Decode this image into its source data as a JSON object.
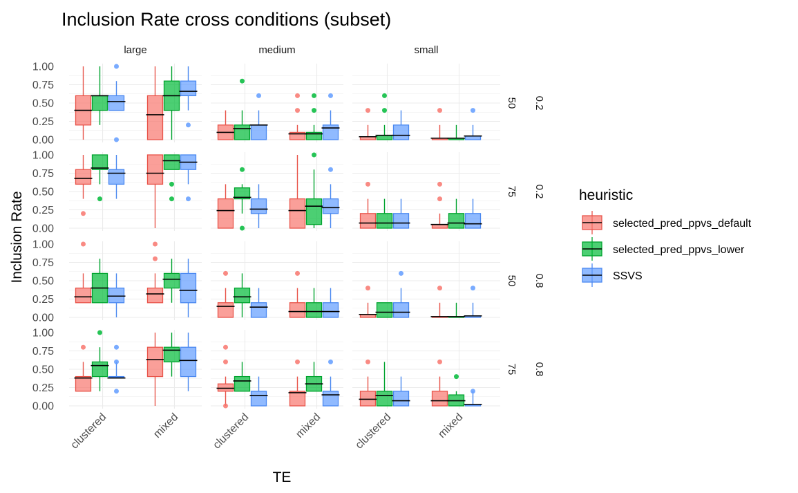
{
  "chart_data": {
    "type": "boxplot",
    "title": "Inclusion Rate cross conditions (subset)",
    "xlabel": "TE",
    "ylabel": "Inclusion Rate",
    "ylim": [
      0,
      1
    ],
    "y_ticks": [
      "0.00",
      "0.25",
      "0.50",
      "0.75",
      "1.00"
    ],
    "x_categories": [
      "clustered",
      "mixed"
    ],
    "columns": [
      "large",
      "medium",
      "small"
    ],
    "rows": [
      {
        "a": "50",
        "b": "0.2"
      },
      {
        "a": "75",
        "b": "0.2"
      },
      {
        "a": "50",
        "b": "0.8"
      },
      {
        "a": "75",
        "b": "0.8"
      }
    ],
    "legend": {
      "title": "heuristic",
      "position": "right",
      "items": [
        {
          "label": "selected_pred_ppvs_default",
          "fill": "#F8766D",
          "stroke": "#E8544A"
        },
        {
          "label": "selected_pred_ppvs_lower",
          "fill": "#00BA38",
          "stroke": "#00A32E"
        },
        {
          "label": "SSVS",
          "fill": "#619CFF",
          "stroke": "#4A88F0"
        }
      ]
    },
    "grid": true,
    "box_stats_order": [
      "min",
      "q1",
      "median",
      "q3",
      "max",
      "outliers"
    ],
    "panels": [
      [
        [
          [
            [
              0,
              0.2,
              0.4,
              0.6,
              1,
              []
            ],
            [
              0.2,
              0.4,
              0.6,
              0.6,
              1,
              []
            ],
            [
              0.4,
              0.4,
              0.52,
              0.6,
              0.8,
              [
                0,
                1
              ]
            ]
          ],
          [
            [
              0,
              0,
              0.34,
              0.6,
              1,
              []
            ],
            [
              0,
              0.4,
              0.6,
              0.8,
              1,
              []
            ],
            [
              0.4,
              0.6,
              0.66,
              0.8,
              1,
              [
                0.2
              ]
            ]
          ]
        ],
        [
          [
            [
              0,
              0,
              0.1,
              0.2,
              0.4,
              []
            ],
            [
              0,
              0,
              0.15,
              0.2,
              0.4,
              [
                0.8
              ]
            ],
            [
              0,
              0,
              0.2,
              0.2,
              0.4,
              [
                0.6
              ]
            ]
          ],
          [
            [
              0,
              0,
              0.08,
              0.1,
              0.2,
              [
                0.4,
                0.6
              ]
            ],
            [
              0,
              0,
              0.08,
              0.1,
              0.2,
              [
                0.4,
                0.6
              ]
            ],
            [
              0,
              0,
              0.16,
              0.2,
              0.4,
              [
                0.6
              ]
            ]
          ]
        ],
        [
          [
            [
              0,
              0,
              0.04,
              0.04,
              0.2,
              [
                0.4
              ]
            ],
            [
              0,
              0,
              0.06,
              0.06,
              0.2,
              [
                0.4,
                0.6
              ]
            ],
            [
              0,
              0,
              0.06,
              0.2,
              0.4,
              []
            ]
          ],
          [
            [
              0,
              0,
              0.02,
              0.02,
              0.2,
              [
                0.4
              ]
            ],
            [
              0,
              0,
              0.02,
              0.02,
              0.2,
              []
            ],
            [
              0,
              0,
              0.05,
              0.05,
              0.2,
              [
                0.4
              ]
            ]
          ]
        ]
      ],
      [
        [
          [
            [
              0.4,
              0.6,
              0.68,
              0.8,
              1,
              [
                0.2
              ]
            ],
            [
              0.6,
              0.8,
              0.82,
              1,
              1,
              [
                0.4
              ]
            ],
            [
              0.4,
              0.6,
              0.75,
              0.8,
              1,
              []
            ]
          ],
          [
            [
              0,
              0.6,
              0.75,
              1,
              1,
              []
            ],
            [
              0.8,
              0.8,
              0.92,
              1,
              1,
              [
                0.4,
                0.6
              ]
            ],
            [
              0.6,
              0.8,
              0.9,
              1,
              1,
              [
                0.4
              ]
            ]
          ]
        ],
        [
          [
            [
              0,
              0,
              0.24,
              0.4,
              0.6,
              []
            ],
            [
              0.2,
              0.4,
              0.42,
              0.55,
              0.6,
              [
                0,
                0.8
              ]
            ],
            [
              0,
              0.2,
              0.26,
              0.4,
              0.6,
              []
            ]
          ],
          [
            [
              0,
              0,
              0.24,
              0.4,
              1,
              []
            ],
            [
              0,
              0.05,
              0.3,
              0.4,
              0.8,
              [
                1
              ]
            ],
            [
              0,
              0.2,
              0.28,
              0.4,
              0.6,
              [
                0.8
              ]
            ]
          ]
        ],
        [
          [
            [
              0,
              0,
              0.07,
              0.2,
              0.4,
              [
                0.6
              ]
            ],
            [
              0,
              0,
              0.07,
              0.2,
              0.4,
              []
            ],
            [
              0,
              0,
              0.07,
              0.2,
              0.4,
              []
            ]
          ],
          [
            [
              0,
              0,
              0.05,
              0.05,
              0.2,
              [
                0.4,
                0.6
              ]
            ],
            [
              0,
              0,
              0.07,
              0.2,
              0.4,
              []
            ],
            [
              0,
              0,
              0.06,
              0.2,
              0.4,
              []
            ]
          ]
        ]
      ],
      [
        [
          [
            [
              0.2,
              0.2,
              0.28,
              0.4,
              0.6,
              [
                1
              ]
            ],
            [
              0.2,
              0.2,
              0.4,
              0.6,
              0.8,
              []
            ],
            [
              0,
              0.2,
              0.29,
              0.4,
              0.6,
              []
            ]
          ],
          [
            [
              0.2,
              0.2,
              0.32,
              0.4,
              0.6,
              [
                0.8,
                1
              ]
            ],
            [
              0.2,
              0.4,
              0.52,
              0.6,
              0.8,
              []
            ],
            [
              0,
              0.2,
              0.37,
              0.6,
              0.8,
              []
            ]
          ]
        ],
        [
          [
            [
              0,
              0,
              0.15,
              0.2,
              0.4,
              [
                0.6
              ]
            ],
            [
              0,
              0.2,
              0.28,
              0.4,
              0.6,
              []
            ],
            [
              0,
              0,
              0.14,
              0.2,
              0.4,
              []
            ]
          ],
          [
            [
              0,
              0,
              0.08,
              0.2,
              0.4,
              [
                0.6
              ]
            ],
            [
              0,
              0,
              0.08,
              0.2,
              0.4,
              []
            ],
            [
              0,
              0,
              0.08,
              0.2,
              0.4,
              []
            ]
          ]
        ],
        [
          [
            [
              0,
              0,
              0.04,
              0.04,
              0.2,
              [
                0.4
              ]
            ],
            [
              0,
              0,
              0.07,
              0.2,
              0.2,
              []
            ],
            [
              0,
              0,
              0.07,
              0.2,
              0.4,
              [
                0.6
              ]
            ]
          ],
          [
            [
              0,
              0,
              0.01,
              0.01,
              0.2,
              [
                0.4
              ]
            ],
            [
              0,
              0,
              0.01,
              0.01,
              0.2,
              []
            ],
            [
              0,
              0,
              0.02,
              0.02,
              0.2,
              [
                0.4
              ]
            ]
          ]
        ]
      ],
      [
        [
          [
            [
              0.2,
              0.2,
              0.38,
              0.4,
              0.6,
              [
                0.8
              ]
            ],
            [
              0.2,
              0.4,
              0.55,
              0.6,
              0.8,
              [
                1
              ]
            ],
            [
              0.4,
              0.4,
              0.38,
              0.4,
              0.6,
              [
                0.2,
                0.6,
                0.8
              ]
            ]
          ],
          [
            [
              0,
              0.4,
              0.63,
              0.8,
              1,
              []
            ],
            [
              0.4,
              0.6,
              0.76,
              0.8,
              1,
              []
            ],
            [
              0.2,
              0.4,
              0.62,
              0.8,
              1,
              []
            ]
          ]
        ],
        [
          [
            [
              0,
              0.2,
              0.24,
              0.3,
              0.4,
              [
                0,
                0.6,
                0.8
              ]
            ],
            [
              0.2,
              0.2,
              0.34,
              0.4,
              0.6,
              []
            ],
            [
              0,
              0,
              0.14,
              0.2,
              0.4,
              []
            ]
          ],
          [
            [
              0,
              0,
              0.18,
              0.2,
              0.4,
              [
                0.6
              ]
            ],
            [
              0.2,
              0.2,
              0.3,
              0.4,
              0.6,
              []
            ],
            [
              0,
              0,
              0.15,
              0.2,
              0.4,
              [
                0.6
              ]
            ]
          ]
        ],
        [
          [
            [
              0,
              0,
              0.09,
              0.2,
              0.4,
              [
                0.6
              ]
            ],
            [
              0,
              0,
              0.14,
              0.2,
              0.6,
              []
            ],
            [
              0,
              0,
              0.07,
              0.2,
              0.4,
              []
            ]
          ],
          [
            [
              0,
              0,
              0.07,
              0.2,
              0.4,
              [
                0.6
              ]
            ],
            [
              0,
              0,
              0.07,
              0.15,
              0.2,
              [
                0.4
              ]
            ],
            [
              0,
              0,
              0.02,
              0.02,
              0.2,
              [
                0.2
              ]
            ]
          ]
        ]
      ]
    ]
  }
}
